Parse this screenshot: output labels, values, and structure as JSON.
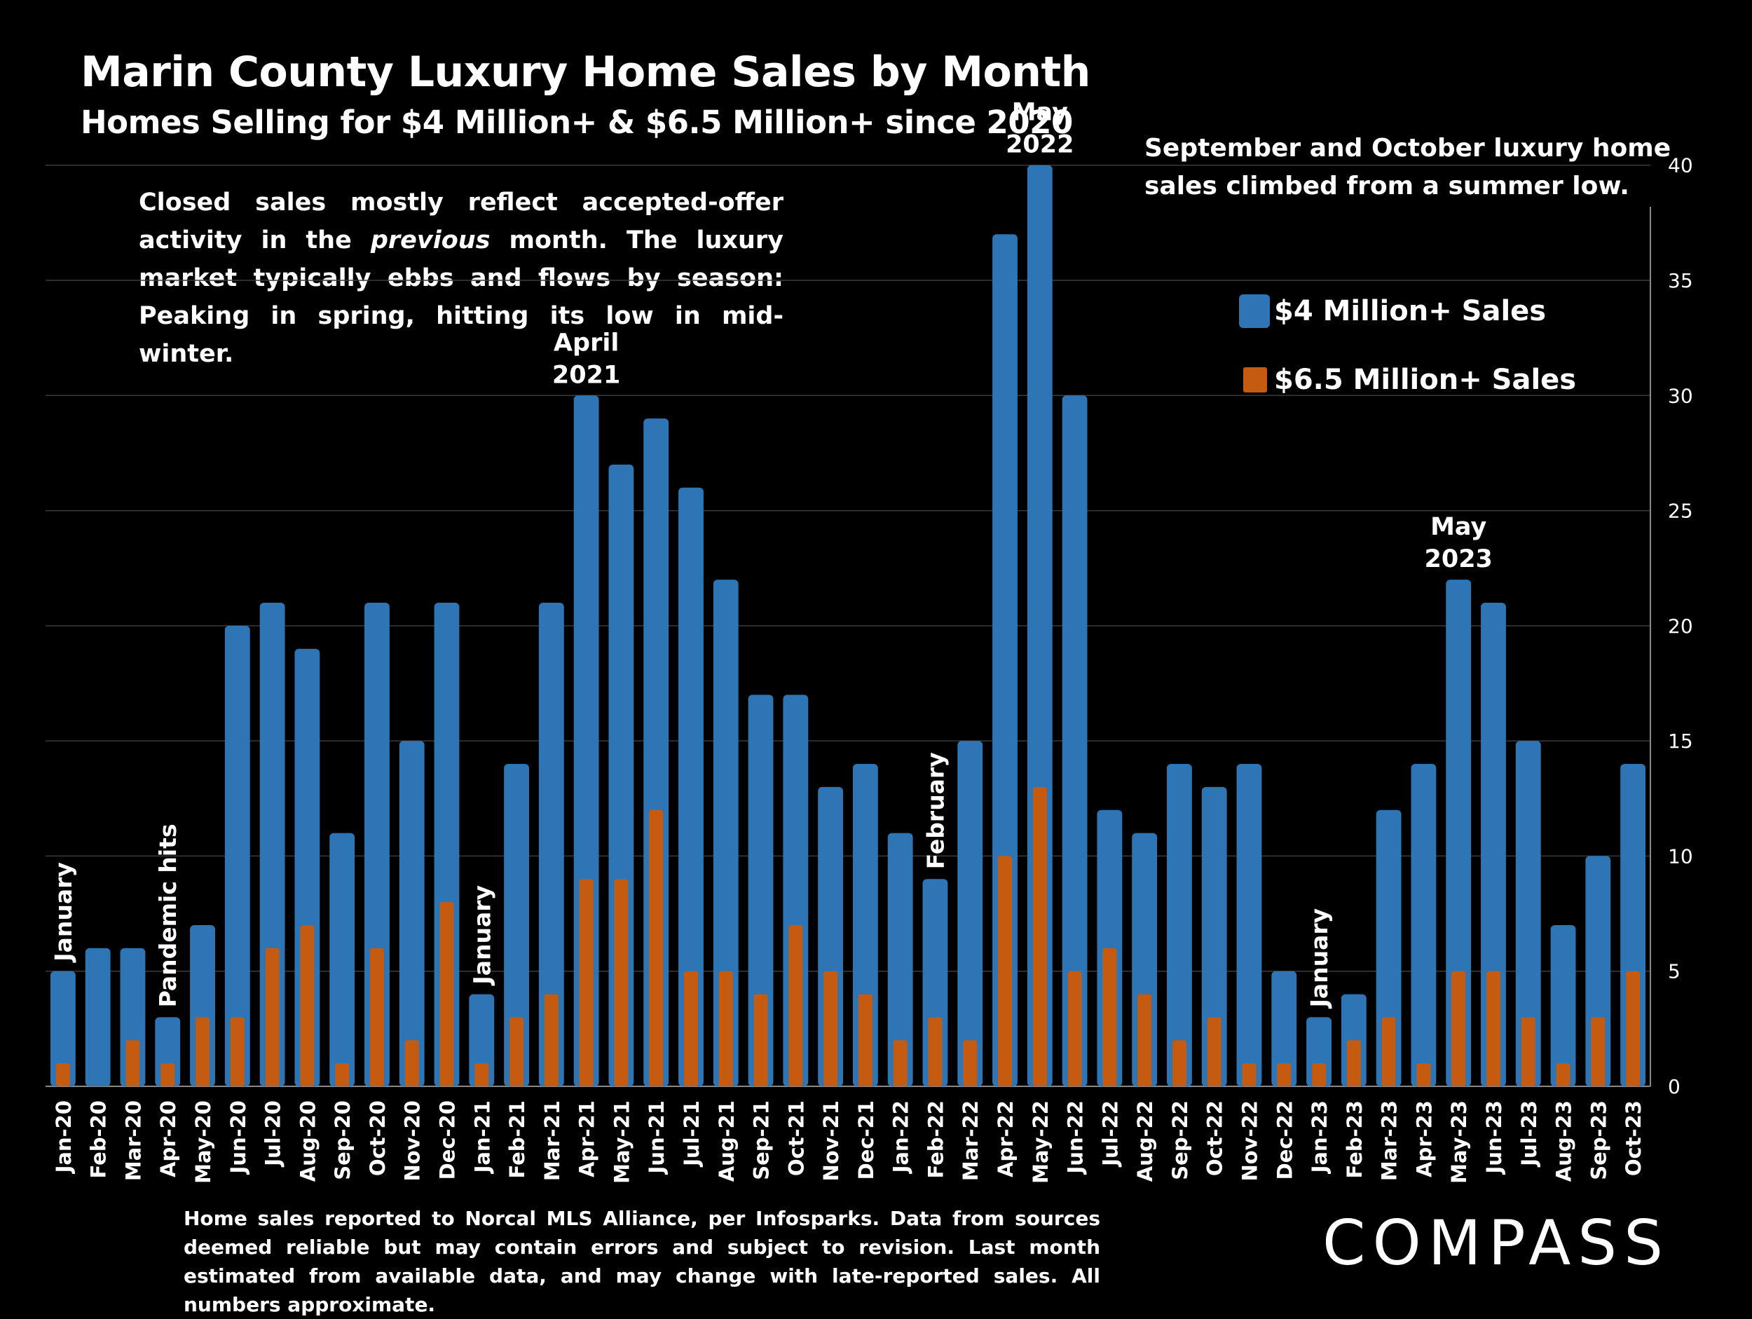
{
  "title": "Marin County Luxury Home Sales by Month",
  "subtitle": "Homes Selling for $4 Million+ & $6.5 Million+ since 2020",
  "note_left": "Closed sales mostly reflect accepted-offer activity in the ",
  "note_left_italic": "previous",
  "note_left_rest": " month. The luxury market typically ebbs and flows by season: Peaking in spring, hitting its low in mid-winter.",
  "note_right": "September and October luxury home sales climbed from a summer low.",
  "footnote": "Home sales reported to Norcal MLS Alliance, per Infosparks. Data from sources deemed reliable but may contain errors and subject to revision.  Last month estimated from available data, and may change with late-reported sales. All numbers approximate.",
  "logo_text": "COMPASS",
  "colors": {
    "background": "#000000",
    "series_4m": "#2E75B6",
    "series_6_5m": "#C55A11",
    "grid": "#3a3a3a"
  },
  "chart_data": {
    "type": "bar",
    "categories": [
      "Jan-20",
      "Feb-20",
      "Mar-20",
      "Apr-20",
      "May-20",
      "Jun-20",
      "Jul-20",
      "Aug-20",
      "Sep-20",
      "Oct-20",
      "Nov-20",
      "Dec-20",
      "Jan-21",
      "Feb-21",
      "Mar-21",
      "Apr-21",
      "May-21",
      "Jun-21",
      "Jul-21",
      "Aug-21",
      "Sep-21",
      "Oct-21",
      "Nov-21",
      "Dec-21",
      "Jan-22",
      "Feb-22",
      "Mar-22",
      "Apr-22",
      "May-22",
      "Jun-22",
      "Jul-22",
      "Aug-22",
      "Sep-22",
      "Oct-22",
      "Nov-22",
      "Dec-22",
      "Jan-23",
      "Feb-23",
      "Mar-23",
      "Apr-23",
      "May-23",
      "Jun-23",
      "Jul-23",
      "Aug-23",
      "Sep-23",
      "Oct-23"
    ],
    "series": [
      {
        "name": "$4 Million+ Sales",
        "color": "#2E75B6",
        "values": [
          5,
          6,
          6,
          3,
          7,
          20,
          21,
          19,
          11,
          21,
          15,
          21,
          4,
          14,
          21,
          30,
          27,
          29,
          26,
          22,
          17,
          17,
          13,
          14,
          11,
          9,
          15,
          37,
          40,
          30,
          12,
          11,
          14,
          13,
          14,
          5,
          3,
          4,
          12,
          14,
          22,
          21,
          15,
          7,
          10,
          14
        ]
      },
      {
        "name": "$6.5 Million+ Sales",
        "color": "#C55A11",
        "values": [
          1,
          0,
          2,
          1,
          3,
          3,
          6,
          7,
          1,
          6,
          2,
          8,
          1,
          3,
          4,
          9,
          9,
          12,
          5,
          5,
          4,
          7,
          5,
          4,
          2,
          3,
          2,
          10,
          13,
          5,
          6,
          4,
          2,
          3,
          1,
          1,
          1,
          2,
          3,
          1,
          5,
          5,
          3,
          1,
          3,
          5
        ]
      }
    ],
    "ylim": [
      0,
      42
    ],
    "yticks": [
      0,
      5,
      10,
      15,
      20,
      25,
      30,
      35,
      40
    ],
    "y_axis_side": "right",
    "grid": true,
    "legend": "top-right",
    "annotations": [
      {
        "text": "January",
        "index": 0,
        "value": 5,
        "orientation": "vertical"
      },
      {
        "text": "Pandemic hits",
        "index": 3,
        "value": 3,
        "orientation": "vertical"
      },
      {
        "text": "January",
        "index": 12,
        "value": 4,
        "orientation": "vertical"
      },
      {
        "text": "April",
        "text2": "2021",
        "index": 15,
        "value": 30,
        "orientation": "horizontal"
      },
      {
        "text": "February",
        "index": 25,
        "value": 9,
        "orientation": "vertical"
      },
      {
        "text": "May",
        "text2": "2022",
        "index": 28,
        "value": 40,
        "orientation": "horizontal"
      },
      {
        "text": "January",
        "index": 36,
        "value": 3,
        "orientation": "vertical"
      },
      {
        "text": "May",
        "text2": "2023",
        "index": 40,
        "value": 22,
        "orientation": "horizontal"
      }
    ]
  }
}
